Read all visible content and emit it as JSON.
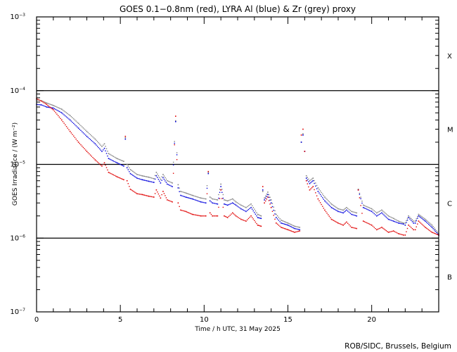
{
  "chart_data": {
    "type": "scatter",
    "title": "GOES 0.1−0.8nm (red), LYRA Al (blue) & Zr (grey) proxy",
    "xlabel": "Time / h UTC, 31 May 2025",
    "ylabel": "GOES Irradiance / (W m⁻²)",
    "xlim": [
      0,
      24
    ],
    "ylim": [
      1e-07,
      0.001
    ],
    "yscale": "log",
    "x_ticks": [
      {
        "value": 0,
        "label": "0"
      },
      {
        "value": 5,
        "label": "5"
      },
      {
        "value": 10,
        "label": "10"
      },
      {
        "value": 15,
        "label": "15"
      },
      {
        "value": 20,
        "label": "20"
      }
    ],
    "y_ticks": [
      {
        "value": 0.001,
        "base": "10",
        "exp": "−3"
      },
      {
        "value": 0.0001,
        "base": "10",
        "exp": "−4"
      },
      {
        "value": 1e-05,
        "base": "10",
        "exp": "−5"
      },
      {
        "value": 1e-06,
        "base": "10",
        "exp": "−6"
      },
      {
        "value": 1e-07,
        "base": "10",
        "exp": "−7"
      }
    ],
    "flare_classes": [
      {
        "label": "X",
        "value": 0.0003
      },
      {
        "label": "M",
        "value": 3e-05
      },
      {
        "label": "C",
        "value": 3e-06
      },
      {
        "label": "B",
        "value": 3e-07
      }
    ],
    "threshold_lines": [
      0.0001,
      1e-05,
      1e-06
    ],
    "series": [
      {
        "name": "GOES 0.1-0.8nm",
        "color": "#e00000",
        "x": [
          0,
          0.3,
          0.6,
          1,
          1.5,
          2,
          2.5,
          3,
          3.5,
          3.9,
          4.05,
          4.3,
          4.8,
          5.2,
          5.3,
          5.4,
          5.6,
          6,
          6.3,
          6.7,
          7,
          7.15,
          7.4,
          7.55,
          7.8,
          8.1,
          8.3,
          8.45,
          8.6,
          8.9,
          9.3,
          9.8,
          10.1,
          10.25,
          10.35,
          10.5,
          10.8,
          11,
          11.2,
          11.4,
          11.7,
          11.9,
          12.2,
          12.5,
          12.8,
          13.2,
          13.4,
          13.5,
          13.6,
          13.8,
          14,
          14.3,
          14.6,
          15,
          15.4,
          15.7,
          15.8,
          15.9,
          16,
          16.1,
          16.3,
          16.5,
          16.8,
          17.2,
          17.6,
          18,
          18.3,
          18.5,
          18.8,
          19.1,
          19.2,
          19.5,
          20,
          20.3,
          20.6,
          21,
          21.3,
          21.6,
          21.9,
          22,
          22.2,
          22.5,
          22.6,
          22.8,
          23.2,
          23.6,
          24
        ],
        "y": [
          7.8e-05,
          7.2e-05,
          6.5e-05,
          5.5e-05,
          4e-05,
          2.8e-05,
          2e-05,
          1.5e-05,
          1.15e-05,
          9.5e-06,
          1.05e-05,
          7.8e-06,
          6.8e-06,
          6.2e-06,
          2.4e-05,
          6e-06,
          4.6e-06,
          4e-06,
          3.9e-06,
          3.7e-06,
          3.6e-06,
          4.5e-06,
          3.5e-06,
          4.3e-06,
          3.3e-06,
          3.1e-06,
          4.5e-05,
          3e-06,
          2.4e-06,
          2.3e-06,
          2.1e-06,
          2e-06,
          2e-06,
          8e-06,
          2.2e-06,
          2e-06,
          2e-06,
          4.5e-06,
          2e-06,
          1.9e-06,
          2.2e-06,
          2e-06,
          1.8e-06,
          1.7e-06,
          2e-06,
          1.5e-06,
          1.45e-06,
          5e-06,
          3e-06,
          3.6e-06,
          2.6e-06,
          1.6e-06,
          1.4e-06,
          1.3e-06,
          1.2e-06,
          1.25e-06,
          2.5e-05,
          3e-05,
          1.5e-05,
          6e-06,
          4.5e-06,
          5e-06,
          3.4e-06,
          2.4e-06,
          1.8e-06,
          1.6e-06,
          1.5e-06,
          1.65e-06,
          1.4e-06,
          1.35e-06,
          4.5e-06,
          1.7e-06,
          1.5e-06,
          1.3e-06,
          1.4e-06,
          1.2e-06,
          1.25e-06,
          1.15e-06,
          1.1e-06,
          1.1e-06,
          1.5e-06,
          1.3e-06,
          1.3e-06,
          1.7e-06,
          1.4e-06,
          1.2e-06,
          1.1e-06
        ]
      },
      {
        "name": "LYRA Al proxy",
        "color": "#0000dd",
        "x": [
          0,
          0.3,
          0.6,
          1,
          1.5,
          2,
          2.5,
          3,
          3.5,
          3.9,
          4.05,
          4.3,
          4.8,
          5.2,
          5.3,
          5.4,
          5.6,
          6,
          6.3,
          6.7,
          7,
          7.15,
          7.4,
          7.55,
          7.8,
          8.1,
          8.3,
          8.45,
          8.6,
          8.9,
          9.3,
          9.8,
          10.1,
          10.25,
          10.35,
          10.5,
          10.8,
          11,
          11.2,
          11.4,
          11.7,
          11.9,
          12.2,
          12.5,
          12.8,
          13.2,
          13.4,
          13.5,
          13.6,
          13.8,
          14,
          14.3,
          14.6,
          15,
          15.4,
          15.7,
          15.8,
          15.9,
          16,
          16.1,
          16.3,
          16.5,
          16.8,
          17.2,
          17.6,
          18,
          18.3,
          18.5,
          18.8,
          19.1,
          19.2,
          19.5,
          20,
          20.3,
          20.6,
          21,
          21.3,
          21.6,
          21.9,
          22,
          22.2,
          22.5,
          22.6,
          22.8,
          23.2,
          23.6,
          24
        ],
        "y": [
          6.5e-05,
          6.4e-05,
          6e-05,
          5.8e-05,
          5e-05,
          4e-05,
          3.1e-05,
          2.4e-05,
          1.9e-05,
          1.5e-05,
          1.65e-05,
          1.2e-05,
          1.05e-05,
          9.5e-06,
          2.2e-05,
          9e-06,
          7.5e-06,
          6.5e-06,
          6.2e-06,
          5.9e-06,
          5.7e-06,
          7e-06,
          5.6e-06,
          6.6e-06,
          5.4e-06,
          5e-06,
          3.8e-05,
          4.8e-06,
          3.8e-06,
          3.6e-06,
          3.4e-06,
          3.1e-06,
          3e-06,
          7.5e-06,
          3.2e-06,
          3e-06,
          2.9e-06,
          5e-06,
          2.9e-06,
          2.8e-06,
          3e-06,
          2.8e-06,
          2.5e-06,
          2.3e-06,
          2.6e-06,
          1.9e-06,
          1.85e-06,
          4.5e-06,
          3.3e-06,
          3.9e-06,
          3e-06,
          1.9e-06,
          1.6e-06,
          1.5e-06,
          1.35e-06,
          1.3e-06,
          2e-05,
          2.5e-05,
          1.5e-05,
          6.5e-06,
          5.5e-06,
          6e-06,
          4.3e-06,
          3.2e-06,
          2.6e-06,
          2.3e-06,
          2.2e-06,
          2.4e-06,
          2.1e-06,
          2e-06,
          4.5e-06,
          2.6e-06,
          2.3e-06,
          2e-06,
          2.2e-06,
          1.8e-06,
          1.7e-06,
          1.6e-06,
          1.55e-06,
          1.5e-06,
          1.9e-06,
          1.6e-06,
          1.6e-06,
          2e-06,
          1.7e-06,
          1.4e-06,
          1.1e-06
        ]
      },
      {
        "name": "LYRA Zr proxy",
        "color": "#808080",
        "x": [
          0,
          0.3,
          0.6,
          1,
          1.5,
          2,
          2.5,
          3,
          3.5,
          3.9,
          4.05,
          4.3,
          4.8,
          5.2,
          5.3,
          5.4,
          5.6,
          6,
          6.3,
          6.7,
          7,
          7.15,
          7.4,
          7.55,
          7.8,
          8.1,
          8.3,
          8.45,
          8.6,
          8.9,
          9.3,
          9.8,
          10.1,
          10.25,
          10.35,
          10.5,
          10.8,
          11,
          11.2,
          11.4,
          11.7,
          11.9,
          12.2,
          12.5,
          12.8,
          13.2,
          13.4,
          13.5,
          13.6,
          13.8,
          14,
          14.3,
          14.6,
          15,
          15.4,
          15.7,
          15.8,
          15.9,
          16,
          16.1,
          16.3,
          16.5,
          16.8,
          17.2,
          17.6,
          18,
          18.3,
          18.5,
          18.8,
          19.1,
          19.2,
          19.5,
          20,
          20.3,
          20.6,
          21,
          21.3,
          21.6,
          21.9,
          22,
          22.2,
          22.5,
          22.6,
          22.8,
          23.2,
          23.6,
          24
        ],
        "y": [
          7.5e-05,
          7.3e-05,
          6.8e-05,
          6.3e-05,
          5.6e-05,
          4.6e-05,
          3.6e-05,
          2.8e-05,
          2.2e-05,
          1.75e-05,
          1.9e-05,
          1.4e-05,
          1.2e-05,
          1.1e-05,
          2.3e-05,
          1e-05,
          8.5e-06,
          7.3e-06,
          7e-06,
          6.7e-06,
          6.4e-06,
          7.8e-06,
          6.3e-06,
          7.3e-06,
          6e-06,
          5.6e-06,
          3.9e-05,
          5.3e-06,
          4.3e-06,
          4.1e-06,
          3.8e-06,
          3.5e-06,
          3.4e-06,
          7.8e-06,
          3.6e-06,
          3.4e-06,
          3.3e-06,
          5.4e-06,
          3.3e-06,
          3.2e-06,
          3.4e-06,
          3.1e-06,
          2.8e-06,
          2.6e-06,
          2.9e-06,
          2.1e-06,
          2e-06,
          4.3e-06,
          3.5e-06,
          4.2e-06,
          3.3e-06,
          2.1e-06,
          1.75e-06,
          1.6e-06,
          1.45e-06,
          1.4e-06,
          2e-05,
          2.6e-05,
          1.5e-05,
          7e-06,
          6e-06,
          6.5e-06,
          4.8e-06,
          3.6e-06,
          2.9e-06,
          2.5e-06,
          2.4e-06,
          2.6e-06,
          2.3e-06,
          2.2e-06,
          4.6e-06,
          2.8e-06,
          2.5e-06,
          2.2e-06,
          2.4e-06,
          2e-06,
          1.85e-06,
          1.7e-06,
          1.6e-06,
          1.6e-06,
          2e-06,
          1.7e-06,
          1.7e-06,
          2.1e-06,
          1.8e-06,
          1.5e-06,
          1.15e-06
        ]
      }
    ],
    "credit": "ROB/SIDC, Brussels, Belgium",
    "grid": false
  }
}
